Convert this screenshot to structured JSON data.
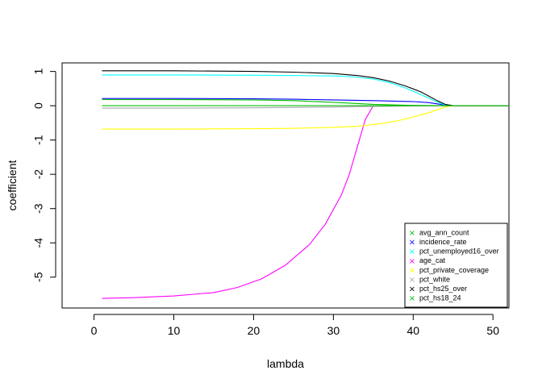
{
  "chart_data": {
    "type": "line",
    "title": "",
    "xlabel": "lambda",
    "ylabel": "coefficient",
    "xlim": [
      -4,
      52
    ],
    "ylim": [
      -5.9,
      1.25
    ],
    "x_ticks": [
      0,
      10,
      20,
      30,
      40,
      50
    ],
    "y_ticks": [
      1,
      0,
      -1,
      -2,
      -3,
      -4,
      -5
    ],
    "legend_position": "bottom-right",
    "grid": false,
    "series": [
      {
        "name": "avg_ann_count",
        "color": "#00c000",
        "points": [
          [
            1,
            0.18
          ],
          [
            10,
            0.18
          ],
          [
            20,
            0.17
          ],
          [
            25,
            0.15
          ],
          [
            30,
            0.1
          ],
          [
            35,
            0.04
          ],
          [
            40,
            0.01
          ],
          [
            44,
            0
          ],
          [
            52,
            0
          ]
        ]
      },
      {
        "name": "incidence_rate",
        "color": "#0000ff",
        "points": [
          [
            1,
            0.21
          ],
          [
            10,
            0.21
          ],
          [
            20,
            0.2
          ],
          [
            25,
            0.19
          ],
          [
            30,
            0.17
          ],
          [
            35,
            0.15
          ],
          [
            40,
            0.12
          ],
          [
            42,
            0.09
          ],
          [
            44,
            0.02
          ],
          [
            45,
            0
          ],
          [
            52,
            0
          ]
        ]
      },
      {
        "name": "pct_unemployed16_over",
        "color": "#00ffff",
        "points": [
          [
            1,
            0.9
          ],
          [
            10,
            0.9
          ],
          [
            20,
            0.89
          ],
          [
            25,
            0.88
          ],
          [
            30,
            0.87
          ],
          [
            32,
            0.85
          ],
          [
            35,
            0.78
          ],
          [
            37,
            0.68
          ],
          [
            39,
            0.52
          ],
          [
            41,
            0.32
          ],
          [
            43,
            0.11
          ],
          [
            44,
            0.02
          ],
          [
            45,
            0
          ],
          [
            52,
            0
          ]
        ]
      },
      {
        "name": "age_cat",
        "color": "#ff00ff",
        "points": [
          [
            1,
            -5.62
          ],
          [
            5,
            -5.6
          ],
          [
            10,
            -5.55
          ],
          [
            15,
            -5.45
          ],
          [
            18,
            -5.3
          ],
          [
            21,
            -5.05
          ],
          [
            24,
            -4.65
          ],
          [
            27,
            -4.05
          ],
          [
            29,
            -3.45
          ],
          [
            31,
            -2.6
          ],
          [
            32,
            -2.0
          ],
          [
            33,
            -1.2
          ],
          [
            34,
            -0.4
          ],
          [
            35,
            0
          ],
          [
            52,
            0
          ]
        ]
      },
      {
        "name": "pct_private_coverage",
        "color": "#ffff00",
        "points": [
          [
            1,
            -0.68
          ],
          [
            10,
            -0.68
          ],
          [
            20,
            -0.67
          ],
          [
            25,
            -0.66
          ],
          [
            30,
            -0.63
          ],
          [
            33,
            -0.6
          ],
          [
            36,
            -0.52
          ],
          [
            38,
            -0.44
          ],
          [
            40,
            -0.33
          ],
          [
            42,
            -0.2
          ],
          [
            44,
            -0.04
          ],
          [
            45,
            0
          ],
          [
            52,
            0
          ]
        ]
      },
      {
        "name": "pct_white",
        "color": "#a9a9a9",
        "points": [
          [
            1,
            -0.07
          ],
          [
            10,
            -0.07
          ],
          [
            20,
            -0.06
          ],
          [
            30,
            -0.04
          ],
          [
            35,
            -0.02
          ],
          [
            40,
            -0.01
          ],
          [
            44,
            0
          ],
          [
            52,
            0
          ]
        ]
      },
      {
        "name": "pct_hs25_over",
        "color": "#000000",
        "points": [
          [
            1,
            1.02
          ],
          [
            10,
            1.02
          ],
          [
            20,
            1.0
          ],
          [
            25,
            0.98
          ],
          [
            30,
            0.94
          ],
          [
            33,
            0.88
          ],
          [
            35,
            0.82
          ],
          [
            37,
            0.72
          ],
          [
            39,
            0.58
          ],
          [
            41,
            0.4
          ],
          [
            43,
            0.15
          ],
          [
            44,
            0.04
          ],
          [
            45,
            0
          ],
          [
            52,
            0
          ]
        ]
      },
      {
        "name": "pct_hs18_24",
        "color": "#00c000",
        "points": [
          [
            1,
            0.0
          ],
          [
            20,
            0.0
          ],
          [
            40,
            0.0
          ],
          [
            52,
            0.0
          ]
        ]
      }
    ]
  }
}
